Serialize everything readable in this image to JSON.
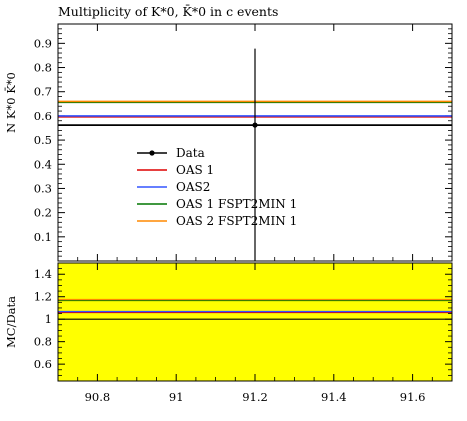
{
  "chart_data": [
    {
      "type": "line",
      "title_prefix": "Multiplicity of ",
      "title_particles": "K*0, K̄*0",
      "title_suffix": " in c events",
      "title_text": "Multiplicity of K*0, K̄*0 in c events",
      "ylabel": "N K*0 K̄*0",
      "xlim": [
        90.7,
        91.7
      ],
      "ylim": [
        0,
        0.98
      ],
      "yticks": [
        0.1,
        0.2,
        0.3,
        0.4,
        0.5,
        0.6,
        0.7,
        0.8,
        0.9
      ],
      "ytick_labels": [
        "0.1",
        "0.2",
        "0.3",
        "0.4",
        "0.5",
        "0.6",
        "0.7",
        "0.8",
        "0.9"
      ],
      "data_point": {
        "x": 91.2,
        "y": 0.562,
        "yerr_low": 0.562,
        "yerr_high": 0.878
      },
      "series": [
        {
          "name": "Data",
          "color": "#000000",
          "style": "marker-errorbar",
          "value": 0.562
        },
        {
          "name": "OAS 1",
          "color": "#dd0000",
          "style": "line",
          "value": 0.596
        },
        {
          "name": "OAS2",
          "color": "#3355ff",
          "style": "line",
          "value": 0.6
        },
        {
          "name": "OAS 1 FSPT2MIN 1",
          "color": "#007700",
          "style": "line",
          "value": 0.656
        },
        {
          "name": "OAS 2 FSPT2MIN 1",
          "color": "#ff8800",
          "style": "line",
          "value": 0.66
        }
      ],
      "legend_position": "center-left"
    },
    {
      "type": "line",
      "ylabel": "MC/Data",
      "xlim": [
        90.7,
        91.7
      ],
      "ylim": [
        0.45,
        1.5
      ],
      "yticks": [
        0.6,
        0.8,
        1.0,
        1.2,
        1.4
      ],
      "ytick_labels": [
        "0.6",
        "0.8",
        "1",
        "1.2",
        "1.4"
      ],
      "xticks": [
        90.8,
        91.0,
        91.2,
        91.4,
        91.6
      ],
      "xtick_labels": [
        "90.8",
        "91",
        "91.2",
        "91.4",
        "91.6"
      ],
      "band": {
        "color": "#ffff00",
        "low": 0.45,
        "high": 1.5
      },
      "series": [
        {
          "name": "OAS 1",
          "color": "#dd0000",
          "value": 1.06
        },
        {
          "name": "OAS2",
          "color": "#3355ff",
          "value": 1.068
        },
        {
          "name": "OAS 1 FSPT2MIN 1",
          "color": "#007700",
          "value": 1.167
        },
        {
          "name": "OAS 2 FSPT2MIN 1",
          "color": "#ff8800",
          "value": 1.175
        }
      ],
      "reference_line": 1.0
    }
  ]
}
